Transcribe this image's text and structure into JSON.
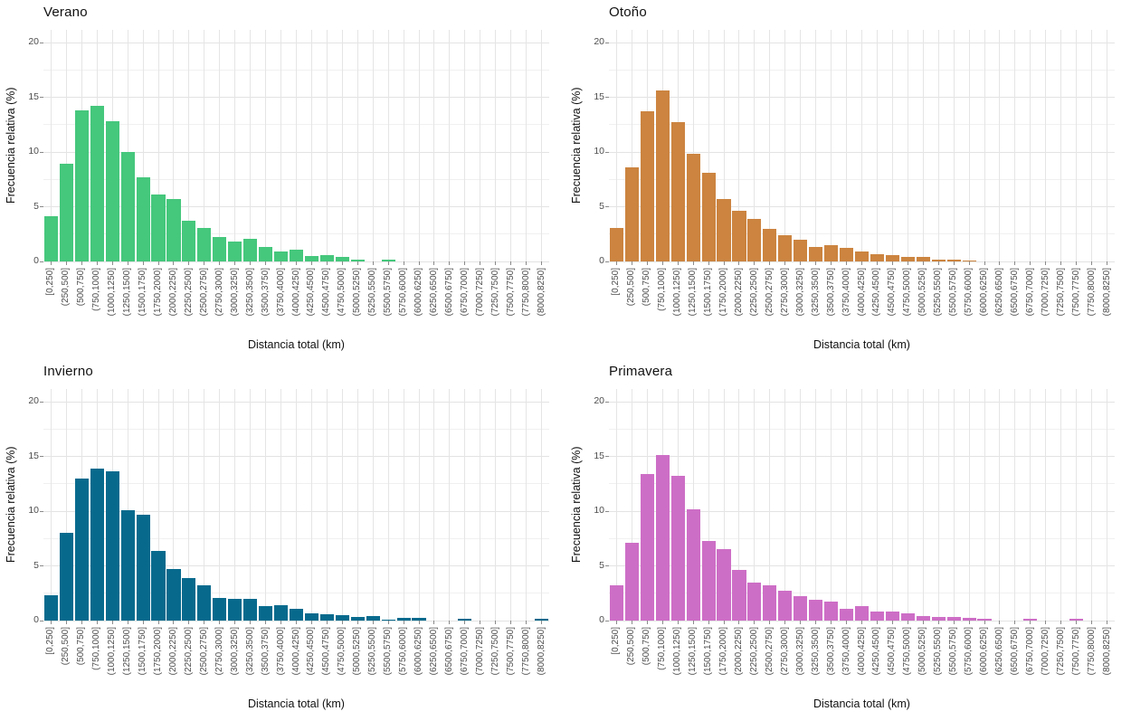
{
  "chart_data": {
    "type": "bar",
    "subtype": "faceted-histograms",
    "xlabel": "Distancia total (km)",
    "ylabel": "Frecuencia relativa (%)",
    "ylim": [
      0,
      20
    ],
    "yticks": [
      0,
      5,
      10,
      15,
      20
    ],
    "y_minor_step": 2.5,
    "grid": "major and minor horizontal, vertical line per bin",
    "legend": "none",
    "categories": [
      "[0,250]",
      "(250,500]",
      "(500,750]",
      "(750,1000]",
      "(1000,1250]",
      "(1250,1500]",
      "(1500,1750]",
      "(1750,2000]",
      "(2000,2250]",
      "(2250,2500]",
      "(2500,2750]",
      "(2750,3000]",
      "(3000,3250]",
      "(3250,3500]",
      "(3500,3750]",
      "(3750,4000]",
      "(4000,4250]",
      "(4250,4500]",
      "(4500,4750]",
      "(4750,5000]",
      "(5000,5250]",
      "(5250,5500]",
      "(5500,5750]",
      "(5750,6000]",
      "(6000,6250]",
      "(6250,6500]",
      "(6500,6750]",
      "(6750,7000]",
      "(7000,7250]",
      "(7250,7500]",
      "(7500,7750]",
      "(7750,8000]",
      "(8000,8250]"
    ],
    "panels": [
      {
        "title": "Verano",
        "color": "#45c77c",
        "values": [
          4.1,
          8.9,
          13.8,
          14.2,
          12.8,
          10.0,
          7.7,
          6.1,
          5.7,
          3.7,
          3.1,
          2.2,
          1.8,
          2.1,
          1.3,
          0.9,
          1.1,
          0.5,
          0.6,
          0.4,
          0.2,
          0,
          0.15,
          0,
          0,
          0,
          0,
          0,
          0,
          0,
          0,
          0,
          0
        ]
      },
      {
        "title": "Otoño",
        "color": "#cc8440",
        "values": [
          3.1,
          8.6,
          13.7,
          15.6,
          12.7,
          9.8,
          8.1,
          5.7,
          4.6,
          3.9,
          3.0,
          2.4,
          2.0,
          1.3,
          1.5,
          1.2,
          0.95,
          0.65,
          0.55,
          0.4,
          0.4,
          0.2,
          0.2,
          0.1,
          0,
          0,
          0,
          0,
          0,
          0,
          0,
          0,
          0
        ]
      },
      {
        "title": "Invierno",
        "color": "#076a8d",
        "values": [
          2.3,
          8.0,
          13.0,
          13.9,
          13.6,
          10.1,
          9.7,
          6.4,
          4.7,
          3.9,
          3.2,
          2.1,
          2.0,
          2.0,
          1.3,
          1.4,
          1.05,
          0.65,
          0.55,
          0.5,
          0.35,
          0.45,
          0.1,
          0.25,
          0.25,
          0,
          0,
          0.15,
          0,
          0,
          0,
          0,
          0.15
        ]
      },
      {
        "title": "Primavera",
        "color": "#cd6ec6",
        "values": [
          3.2,
          7.1,
          13.4,
          15.1,
          13.2,
          10.2,
          7.3,
          6.5,
          4.6,
          3.5,
          3.2,
          2.7,
          2.2,
          1.9,
          1.7,
          1.1,
          1.3,
          0.8,
          0.8,
          0.7,
          0.4,
          0.3,
          0.35,
          0.25,
          0.15,
          0,
          0,
          0.15,
          0,
          0,
          0.15,
          0,
          0
        ]
      }
    ],
    "axis_text_color": "#4d4d4d",
    "title_text_color": "#111111",
    "gridline_major_color": "#e3e3e3",
    "gridline_minor_color": "#f0f0f0"
  }
}
